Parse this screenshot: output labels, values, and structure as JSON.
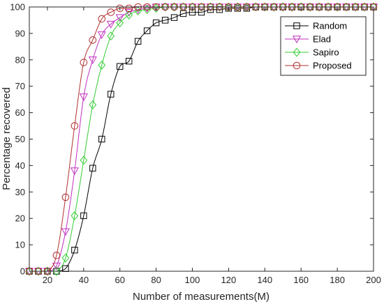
{
  "chart_data": {
    "type": "line",
    "title": "",
    "xlabel": "Number of measurements(M)",
    "ylabel": "Percentage recovered",
    "xlim": [
      10,
      200
    ],
    "ylim": [
      0,
      100
    ],
    "xticks": [
      20,
      40,
      60,
      80,
      100,
      120,
      140,
      160,
      180,
      200
    ],
    "yticks": [
      0,
      10,
      20,
      30,
      40,
      50,
      60,
      70,
      80,
      90,
      100
    ],
    "grid": false,
    "legend_position": "top-right",
    "x": [
      10,
      15,
      20,
      25,
      30,
      35,
      40,
      45,
      50,
      55,
      60,
      65,
      70,
      75,
      80,
      85,
      90,
      95,
      100,
      105,
      110,
      115,
      120,
      125,
      130,
      135,
      140,
      145,
      150,
      155,
      160,
      165,
      170,
      175,
      180,
      185,
      190,
      195,
      200
    ],
    "series": [
      {
        "name": "Random",
        "color": "#000000",
        "marker": "square",
        "values": [
          0,
          0,
          0,
          0,
          1,
          8,
          21,
          39,
          50,
          67,
          77.5,
          79.5,
          87,
          91,
          94,
          95,
          96,
          97.5,
          98,
          98,
          99,
          99,
          99.5,
          99.5,
          99.5,
          100,
          100,
          100,
          100,
          100,
          100,
          100,
          100,
          100,
          100,
          100,
          100,
          100,
          100
        ]
      },
      {
        "name": "Elad",
        "color": "#c030c0",
        "marker": "triangle-down",
        "values": [
          0,
          0,
          0,
          2,
          15,
          38,
          66,
          80,
          89.5,
          93.5,
          96,
          98,
          99,
          99.5,
          100,
          100,
          100,
          100,
          100,
          100,
          100,
          100,
          100,
          100,
          100,
          100,
          100,
          100,
          100,
          100,
          100,
          100,
          100,
          100,
          100,
          100,
          100,
          100,
          100
        ]
      },
      {
        "name": "Sapiro",
        "color": "#33cc33",
        "marker": "diamond",
        "values": [
          0,
          0,
          0,
          0,
          5,
          21,
          42,
          63,
          78,
          89,
          94,
          97,
          98.5,
          99,
          99.5,
          100,
          100,
          100,
          100,
          100,
          100,
          100,
          100,
          100,
          100,
          100,
          100,
          100,
          100,
          100,
          100,
          100,
          100,
          100,
          100,
          100,
          100,
          100,
          100
        ]
      },
      {
        "name": "Proposed",
        "color": "#b03030",
        "marker": "circle",
        "values": [
          0,
          0,
          0,
          6,
          28,
          55,
          79,
          87.5,
          95.5,
          98,
          99.5,
          99.5,
          100,
          100,
          100,
          100,
          100,
          100,
          100,
          100,
          100,
          100,
          100,
          100,
          100,
          100,
          100,
          100,
          100,
          100,
          100,
          100,
          100,
          100,
          100,
          100,
          100,
          100,
          100
        ]
      }
    ]
  }
}
